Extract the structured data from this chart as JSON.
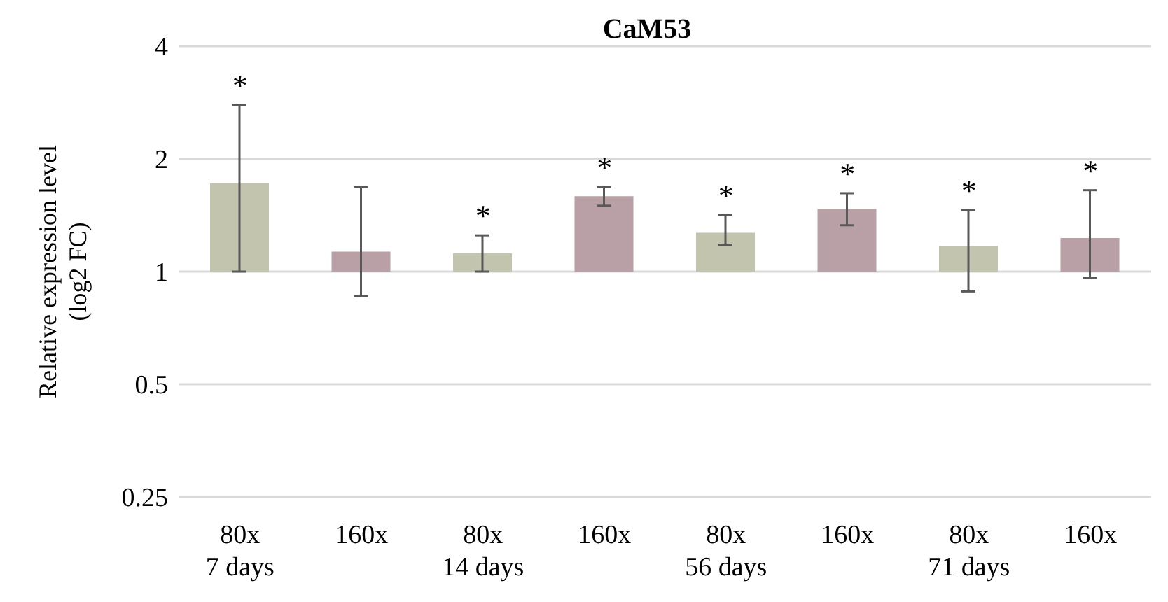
{
  "chart_data": {
    "type": "bar",
    "title": "CaM53",
    "ylabel": "Relative expression level\n(log2 FC)",
    "categories": [
      "80x\n7 days",
      "160x",
      "80x\n14 days",
      "160x",
      "80x\n56 days",
      "160x",
      "80x\n71 days",
      "160x"
    ],
    "base": [
      1,
      1,
      1,
      1,
      1,
      1,
      1,
      1
    ],
    "values": [
      0.72,
      0.13,
      0.12,
      0.59,
      0.27,
      0.47,
      0.17,
      0.23
    ],
    "colors": [
      "#c2c4ae",
      "#b8a0a6",
      "#c2c4ae",
      "#b8a0a6",
      "#c2c4ae",
      "#b8a0a6",
      "#c2c4ae",
      "#b8a0a6"
    ],
    "errors": [
      [
        1.0,
        2.79
      ],
      [
        0.86,
        1.68
      ],
      [
        1.0,
        1.25
      ],
      [
        1.5,
        1.68
      ],
      [
        1.18,
        1.42
      ],
      [
        1.33,
        1.62
      ],
      [
        0.885,
        1.46
      ],
      [
        0.96,
        1.65
      ]
    ],
    "value_labels": [
      "*",
      null,
      "*",
      "*",
      "*",
      "*",
      "*",
      "*"
    ],
    "log": "y",
    "ylim": [
      0.25,
      4
    ],
    "yticks": [
      0.25,
      0.5,
      1,
      2,
      4
    ],
    "grid": "y"
  }
}
